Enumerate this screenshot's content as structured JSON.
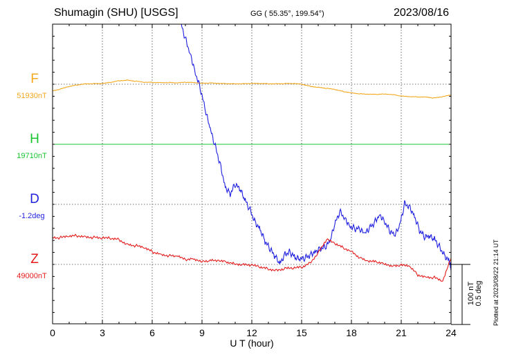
{
  "header": {
    "station": "Shumagin (SHU)  [USGS]",
    "coords": "GG ( 55.35°, 199.54°)",
    "date": "2023/08/16"
  },
  "footer": {
    "plotted": "Plotted at 2023/08/22 21:14 UT"
  },
  "chart_data": {
    "type": "line",
    "xlabel": "U T (hour)",
    "xlim": [
      0,
      24
    ],
    "xticks": [
      "0",
      "3",
      "6",
      "9",
      "12",
      "15",
      "18",
      "21",
      "24"
    ],
    "scale_bar": {
      "label1": "100 nT",
      "label2": "0.5 deg"
    },
    "colors": {
      "F": "#f4a81c",
      "H": "#17c42e",
      "D": "#1f1fe0",
      "Z": "#e41a1a"
    },
    "series": [
      {
        "name": "F",
        "baseline": "51930nT",
        "x": [
          0,
          0.5,
          1,
          1.5,
          2,
          2.5,
          3,
          3.5,
          4,
          4.5,
          5,
          5.5,
          6,
          6.5,
          7,
          7.5,
          8,
          8.5,
          9,
          9.5,
          10,
          10.5,
          11,
          11.5,
          12,
          12.5,
          13,
          13.5,
          14,
          14.5,
          15,
          15.5,
          16,
          16.5,
          17,
          17.5,
          18,
          18.5,
          19,
          19.5,
          20,
          20.5,
          21,
          21.5,
          22,
          22.5,
          23,
          23.5,
          24
        ],
        "values": [
          -11,
          -8,
          -4,
          -1,
          1,
          1,
          1,
          3,
          6,
          7,
          5,
          3,
          3,
          3,
          3,
          2,
          3,
          3,
          2,
          2,
          1,
          1,
          1,
          1,
          1,
          1,
          1,
          1,
          1,
          1,
          0,
          -3,
          -5,
          -7,
          -9,
          -12,
          -14,
          -16,
          -17,
          -17,
          -16,
          -17,
          -20,
          -21,
          -21,
          -21,
          -23,
          -21,
          -18
        ]
      },
      {
        "name": "H",
        "baseline": "19710nT",
        "x": [
          0,
          6,
          12,
          18,
          24
        ],
        "values": [
          0,
          0,
          0,
          0,
          0
        ]
      },
      {
        "name": "D",
        "baseline": "-1.2deg",
        "x": [
          7.7,
          8.0,
          8.3,
          8.6,
          8.9,
          9.2,
          9.5,
          9.8,
          10.1,
          10.4,
          10.7,
          11.0,
          11.3,
          11.6,
          11.9,
          12.2,
          12.5,
          12.8,
          13.1,
          13.4,
          13.7,
          14.0,
          14.3,
          14.6,
          14.9,
          15.2,
          15.5,
          15.8,
          16.1,
          16.4,
          16.7,
          17.0,
          17.3,
          17.6,
          17.9,
          18.2,
          18.5,
          18.8,
          19.1,
          19.4,
          19.7,
          20.0,
          20.3,
          20.6,
          20.9,
          21.2,
          21.5,
          21.8,
          22.1,
          22.4,
          22.7,
          23.0,
          23.3,
          23.6,
          23.9,
          24.0
        ],
        "values": [
          303,
          276,
          251,
          220,
          193,
          156,
          124,
          96,
          67,
          30,
          18,
          33,
          24,
          6,
          -9,
          -29,
          -41,
          -62,
          -75,
          -87,
          -98,
          -82,
          -79,
          -89,
          -92,
          -90,
          -84,
          -78,
          -73,
          -72,
          -63,
          -34,
          -12,
          -22,
          -35,
          -40,
          -42,
          -50,
          -40,
          -29,
          -16,
          -28,
          -44,
          -53,
          -37,
          1,
          -3,
          -19,
          -43,
          -55,
          -54,
          -58,
          -70,
          -84,
          -95,
          -105
        ]
      },
      {
        "name": "Z",
        "baseline": "49000nT",
        "x": [
          0,
          0.5,
          1,
          1.5,
          2,
          2.5,
          3,
          3.5,
          4,
          4.5,
          5,
          5.5,
          6,
          6.5,
          7,
          7.5,
          8,
          8.5,
          9,
          9.5,
          10,
          10.5,
          11,
          11.5,
          12,
          12.5,
          13,
          13.5,
          14,
          14.5,
          15,
          15.5,
          16,
          16.5,
          17,
          17.5,
          18,
          18.5,
          19,
          19.5,
          20,
          20.5,
          21,
          21.5,
          22,
          22.5,
          23,
          23.5,
          24
        ],
        "values": [
          45,
          44,
          46,
          48,
          47,
          45,
          43,
          43,
          42,
          34,
          31,
          27,
          21,
          18,
          15,
          13,
          7,
          10,
          6,
          6,
          5,
          4,
          2,
          0,
          -2,
          -5,
          -7,
          -9,
          -7,
          -7,
          -5,
          3,
          20,
          41,
          34,
          28,
          23,
          11,
          4,
          4,
          2,
          -2,
          -2,
          -4,
          -17,
          -20,
          -22,
          -29,
          10
        ]
      }
    ]
  }
}
